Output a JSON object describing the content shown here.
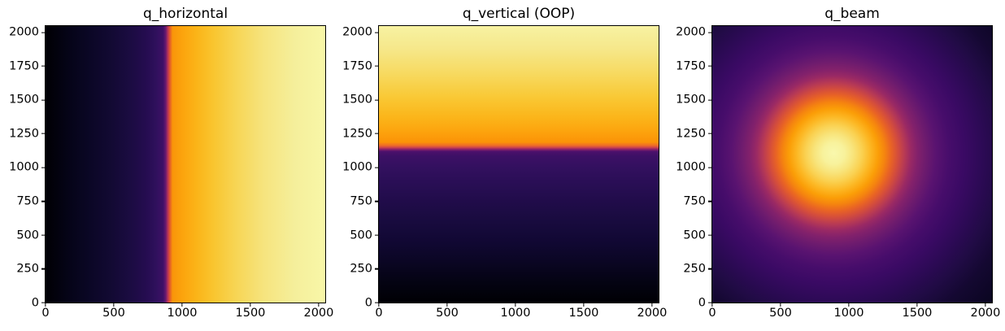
{
  "figure": {
    "background_color": "#ffffff",
    "text_color": "#000000",
    "spine_color": "#000000",
    "colormap": "inferno"
  },
  "chart_data": [
    {
      "type": "heatmap",
      "title": "q_horizontal",
      "xlabel": "",
      "ylabel": "",
      "xlim": [
        0,
        2048
      ],
      "ylim": [
        0,
        2048
      ],
      "xticks": [
        0,
        500,
        1000,
        1500,
        2000
      ],
      "yticks": [
        0,
        250,
        500,
        750,
        1000,
        1250,
        1500,
        1750,
        2000
      ],
      "colormap": "inferno",
      "grid": false,
      "legend": false,
      "pattern": "Field varies only along x: low (dark) on the left, sharp sigmoid-like transition near x ~ 890, high (bright) on the right rising to maximum at the right edge.",
      "profile_axis": "x",
      "profile_x": [
        0,
        250,
        500,
        750,
        860,
        890,
        930,
        1000,
        1250,
        1500,
        1750,
        2048
      ],
      "profile_value_normalized": [
        0.0,
        0.06,
        0.13,
        0.21,
        0.3,
        0.5,
        0.76,
        0.8,
        0.85,
        0.9,
        0.95,
        1.0
      ]
    },
    {
      "type": "heatmap",
      "title": "q_vertical (OOP)",
      "xlabel": "",
      "ylabel": "",
      "xlim": [
        0,
        2048
      ],
      "ylim": [
        0,
        2048
      ],
      "xticks": [
        0,
        500,
        1000,
        1500,
        2000
      ],
      "yticks": [
        0,
        250,
        500,
        750,
        1000,
        1250,
        1500,
        1750,
        2000
      ],
      "colormap": "inferno",
      "grid": false,
      "legend": false,
      "pattern": "Field varies only along y: low (dark) below, sharp sigmoid-like transition near y ~ 1130, high (bright) above rising to maximum at the top edge.",
      "profile_axis": "y",
      "profile_y": [
        0,
        250,
        500,
        750,
        1000,
        1100,
        1130,
        1200,
        1400,
        1700,
        2048
      ],
      "profile_value_normalized": [
        0.0,
        0.06,
        0.11,
        0.17,
        0.24,
        0.3,
        0.5,
        0.78,
        0.85,
        0.92,
        1.0
      ]
    },
    {
      "type": "heatmap",
      "title": "q_beam",
      "xlabel": "",
      "ylabel": "",
      "xlim": [
        0,
        2048
      ],
      "ylim": [
        0,
        2048
      ],
      "xticks": [
        0,
        500,
        1000,
        1500,
        2000
      ],
      "yticks": [
        0,
        250,
        500,
        750,
        1000,
        1250,
        1500,
        1750,
        2000
      ],
      "colormap": "inferno",
      "grid": false,
      "legend": false,
      "pattern": "Radially symmetric Gaussian-like beam: bright pale-yellow core centered near (x, y) ~ (890, 1110), orange ring around it, falling off through purple to near-black at the corners.",
      "center_xy": [
        890,
        1110
      ],
      "profile_axis": "radius",
      "profile_r": [
        0,
        100,
        200,
        300,
        400,
        500,
        650,
        800,
        1000,
        1300,
        1600
      ],
      "profile_value_normalized": [
        1.0,
        0.97,
        0.88,
        0.76,
        0.62,
        0.5,
        0.37,
        0.28,
        0.18,
        0.09,
        0.04
      ]
    }
  ],
  "render": {
    "plots": [
      {
        "gradient": {
          "type": "linear",
          "direction": "to right",
          "stops": [
            [
              "#000004",
              "0%"
            ],
            [
              "#050417",
              "8%"
            ],
            [
              "#0b0726",
              "16%"
            ],
            [
              "#130a34",
              "24%"
            ],
            [
              "#1c0c43",
              "31%"
            ],
            [
              "#250c50",
              "36%"
            ],
            [
              "#2f105c",
              "39.5%"
            ],
            [
              "#3d0f67",
              "42%"
            ],
            [
              "#6b196e",
              "43%"
            ],
            [
              "#b63458",
              "43.7%"
            ],
            [
              "#e1562f",
              "44.4%"
            ],
            [
              "#f9950a",
              "45.4%"
            ],
            [
              "#fca40d",
              "49%"
            ],
            [
              "#fbb418",
              "54%"
            ],
            [
              "#f9c52f",
              "60%"
            ],
            [
              "#f7d554",
              "68%"
            ],
            [
              "#f6e47e",
              "78%"
            ],
            [
              "#f5ef9b",
              "89%"
            ],
            [
              "#f8f7a8",
              "100%"
            ]
          ]
        }
      },
      {
        "gradient": {
          "type": "linear",
          "direction": "to top",
          "stops": [
            [
              "#000004",
              "0%"
            ],
            [
              "#040312",
              "7%"
            ],
            [
              "#0a0622",
              "14%"
            ],
            [
              "#110833",
              "22%"
            ],
            [
              "#180b3e",
              "29%"
            ],
            [
              "#200c49",
              "36%"
            ],
            [
              "#290e55",
              "43%"
            ],
            [
              "#33105f",
              "49%"
            ],
            [
              "#3d1066",
              "53%"
            ],
            [
              "#4c106c",
              "54.6%"
            ],
            [
              "#8c2169",
              "55.4%"
            ],
            [
              "#c8404f",
              "56%"
            ],
            [
              "#ee6b28",
              "56.8%"
            ],
            [
              "#fb9307",
              "58%"
            ],
            [
              "#fca40e",
              "62%"
            ],
            [
              "#fbb51a",
              "67%"
            ],
            [
              "#f9c834",
              "74%"
            ],
            [
              "#f7da61",
              "83%"
            ],
            [
              "#f6e88b",
              "92%"
            ],
            [
              "#f7f2a2",
              "100%"
            ]
          ]
        }
      },
      {
        "gradient": {
          "type": "radial",
          "center": "43.4% 46%",
          "stops": [
            [
              "#f9f8ad",
              "0%"
            ],
            [
              "#f8f29c",
              "5%"
            ],
            [
              "#f8e47b",
              "9%"
            ],
            [
              "#fad151",
              "13%"
            ],
            [
              "#fcb723",
              "17%"
            ],
            [
              "#fb9e07",
              "20.5%"
            ],
            [
              "#f5840f",
              "23.5%"
            ],
            [
              "#e96424",
              "26.5%"
            ],
            [
              "#d44d3c",
              "29.5%"
            ],
            [
              "#b83a54",
              "32.5%"
            ],
            [
              "#9a2964",
              "35.5%"
            ],
            [
              "#83216b",
              "38.5%"
            ],
            [
              "#6d1b6e",
              "42.5%"
            ],
            [
              "#591370",
              "47%"
            ],
            [
              "#470d6b",
              "53%"
            ],
            [
              "#3a0a64",
              "60%"
            ],
            [
              "#2d0a56",
              "68%"
            ],
            [
              "#200b44",
              "77%"
            ],
            [
              "#140831",
              "86%"
            ],
            [
              "#0a0520",
              "100%"
            ]
          ]
        }
      }
    ]
  }
}
